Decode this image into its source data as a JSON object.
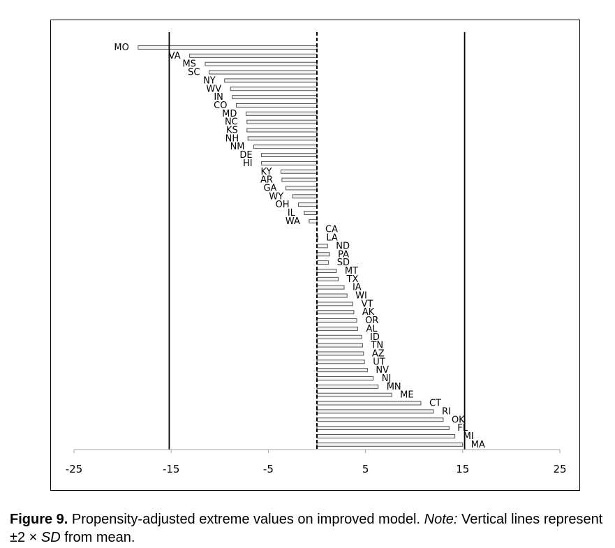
{
  "chart_data": {
    "type": "bar",
    "orientation": "horizontal",
    "categories": [
      "MO",
      "VA",
      "MS",
      "SC",
      "NY",
      "WV",
      "IN",
      "CO",
      "MD",
      "NC",
      "KS",
      "NH",
      "NM",
      "DE",
      "HI",
      "KY",
      "AR",
      "GA",
      "WY",
      "OH",
      "IL",
      "WA",
      "CA",
      "LA",
      "ND",
      "PA",
      "SD",
      "MT",
      "TX",
      "IA",
      "WI",
      "VT",
      "AK",
      "OR",
      "AL",
      "ID",
      "TN",
      "AZ",
      "UT",
      "NV",
      "NJ",
      "MN",
      "ME",
      "CT",
      "RI",
      "OK",
      "FL",
      "MI",
      "MA"
    ],
    "values": [
      -18.4,
      -13.1,
      -11.5,
      -11.1,
      -9.5,
      -8.9,
      -8.7,
      -8.3,
      -7.3,
      -7.2,
      -7.2,
      -7.1,
      -6.5,
      -5.7,
      -5.7,
      -3.7,
      -3.6,
      -3.2,
      -2.5,
      -1.9,
      -1.3,
      -0.8,
      0.0,
      0.1,
      1.1,
      1.3,
      1.2,
      2.0,
      2.2,
      2.8,
      3.1,
      3.7,
      3.8,
      4.1,
      4.2,
      4.6,
      4.7,
      4.8,
      4.9,
      5.2,
      5.8,
      6.3,
      7.7,
      10.7,
      12.0,
      13.0,
      13.6,
      14.2,
      15.0
    ],
    "xlim": [
      -25,
      25
    ],
    "xticks": [
      "-25",
      "-15",
      "-5",
      "5",
      "15",
      "25"
    ],
    "reference_lines": [
      {
        "x": -15.2,
        "style": "solid"
      },
      {
        "x": 0,
        "style": "dashed"
      },
      {
        "x": 15.2,
        "style": "solid"
      }
    ],
    "grid": false,
    "bar_color": "#f2f2f2",
    "bar_edge_color": "#404040"
  },
  "caption": {
    "figure_label": "Figure 9.",
    "text": " Propensity-adjusted extreme values on improved model. ",
    "note_label": "Note:",
    "note_text": " Vertical lines represent ",
    "formula_pm": "±2 × ",
    "formula_sd": "SD",
    "formula_end": " from mean."
  }
}
